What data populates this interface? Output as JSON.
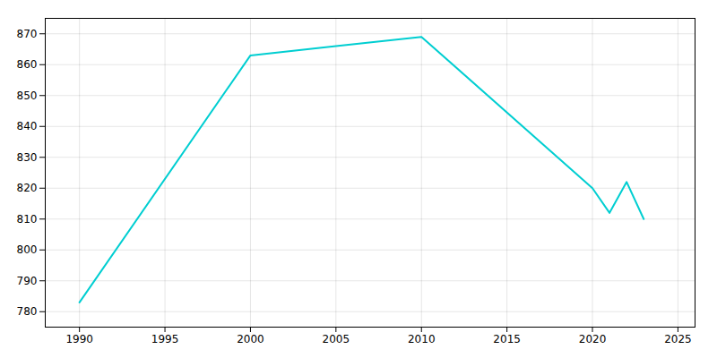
{
  "chart_data": {
    "type": "line",
    "x": [
      1990,
      2000,
      2005,
      2010,
      2020,
      2021,
      2022,
      2023
    ],
    "values": [
      783,
      863,
      866,
      869,
      820,
      812,
      822,
      810
    ],
    "color": "#00CED1",
    "xlim": [
      1988,
      2026
    ],
    "ylim": [
      775,
      875
    ],
    "xticks": [
      1990,
      1995,
      2000,
      2005,
      2010,
      2015,
      2020,
      2025
    ],
    "yticks": [
      780,
      790,
      800,
      810,
      820,
      830,
      840,
      850,
      860,
      870
    ],
    "grid": true
  }
}
